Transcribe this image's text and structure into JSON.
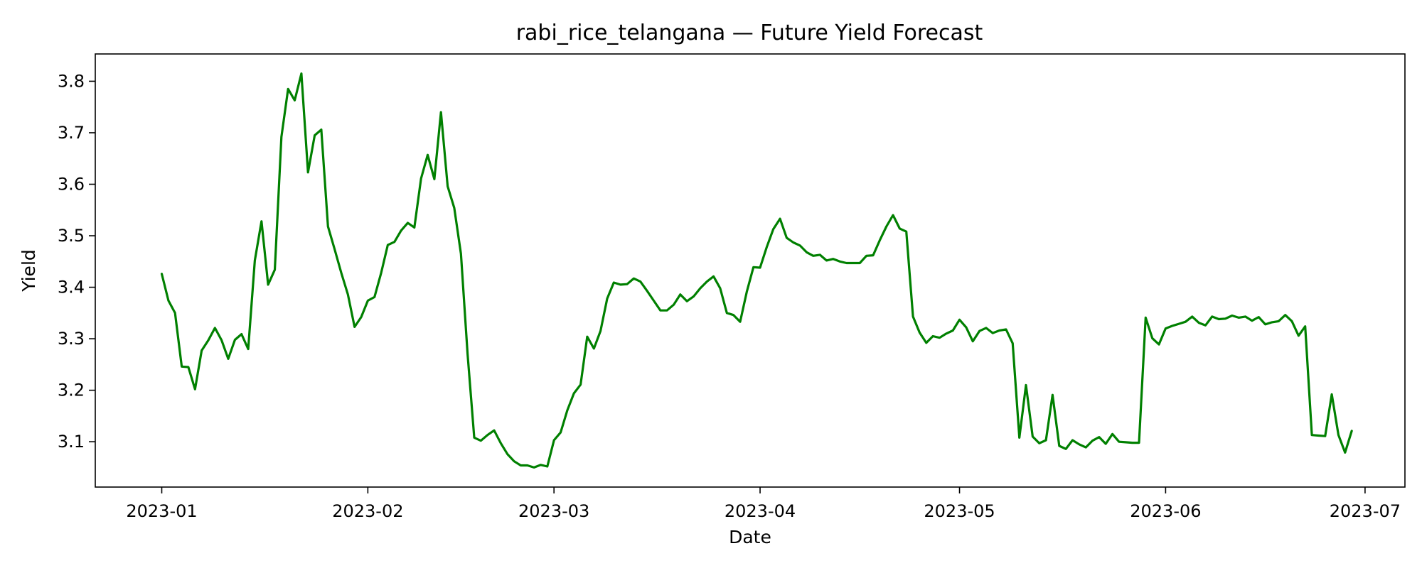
{
  "chart_data": {
    "type": "line",
    "title": "rabi_rice_telangana — Future Yield Forecast",
    "xlabel": "Date",
    "ylabel": "Yield",
    "grid": false,
    "color": "#008000",
    "xlim": [
      "2022-12-22",
      "2023-07-07"
    ],
    "ylim": [
      3.012,
      3.853
    ],
    "x_ticks": [
      "2023-01-01",
      "2023-02-01",
      "2023-03-01",
      "2023-04-01",
      "2023-05-01",
      "2023-06-01",
      "2023-07-01"
    ],
    "x_tick_labels": [
      "2023-01",
      "2023-02",
      "2023-03",
      "2023-04",
      "2023-05",
      "2023-06",
      "2023-07"
    ],
    "y_ticks": [
      3.1,
      3.2,
      3.3,
      3.4,
      3.5,
      3.6,
      3.7,
      3.8
    ],
    "y_tick_labels": [
      "3.1",
      "3.2",
      "3.3",
      "3.4",
      "3.5",
      "3.6",
      "3.7",
      "3.8"
    ],
    "series": [
      {
        "x": [
          "2023-01-01",
          "2023-01-02",
          "2023-01-03",
          "2023-01-04",
          "2023-01-05",
          "2023-01-06",
          "2023-01-07",
          "2023-01-08",
          "2023-01-09",
          "2023-01-10",
          "2023-01-11",
          "2023-01-12",
          "2023-01-13",
          "2023-01-14",
          "2023-01-15",
          "2023-01-16",
          "2023-01-17",
          "2023-01-18",
          "2023-01-19",
          "2023-01-20",
          "2023-01-21",
          "2023-01-22",
          "2023-01-23",
          "2023-01-24",
          "2023-01-25",
          "2023-01-26",
          "2023-01-27",
          "2023-01-28",
          "2023-01-29",
          "2023-01-30",
          "2023-01-31",
          "2023-02-01",
          "2023-02-02",
          "2023-02-03",
          "2023-02-04",
          "2023-02-05",
          "2023-02-06",
          "2023-02-07",
          "2023-02-08",
          "2023-02-09",
          "2023-02-10",
          "2023-02-11",
          "2023-02-12",
          "2023-02-13",
          "2023-02-14",
          "2023-02-15",
          "2023-02-16",
          "2023-02-17",
          "2023-02-18",
          "2023-02-19",
          "2023-02-20",
          "2023-02-21",
          "2023-02-22",
          "2023-02-23",
          "2023-02-24",
          "2023-02-25",
          "2023-02-26",
          "2023-02-27",
          "2023-02-28",
          "2023-03-01",
          "2023-03-02",
          "2023-03-03",
          "2023-03-04",
          "2023-03-05",
          "2023-03-06",
          "2023-03-07",
          "2023-03-08",
          "2023-03-09",
          "2023-03-10",
          "2023-03-11",
          "2023-03-12",
          "2023-03-13",
          "2023-03-14",
          "2023-03-15",
          "2023-03-16",
          "2023-03-17",
          "2023-03-18",
          "2023-03-19",
          "2023-03-20",
          "2023-03-21",
          "2023-03-22",
          "2023-03-23",
          "2023-03-24",
          "2023-03-25",
          "2023-03-26",
          "2023-03-27",
          "2023-03-28",
          "2023-03-29",
          "2023-03-30",
          "2023-03-31",
          "2023-04-01",
          "2023-04-02",
          "2023-04-03",
          "2023-04-04",
          "2023-04-05",
          "2023-04-06",
          "2023-04-07",
          "2023-04-08",
          "2023-04-09",
          "2023-04-10",
          "2023-04-11",
          "2023-04-12",
          "2023-04-13",
          "2023-04-14",
          "2023-04-15",
          "2023-04-16",
          "2023-04-17",
          "2023-04-18",
          "2023-04-19",
          "2023-04-20",
          "2023-04-21",
          "2023-04-22",
          "2023-04-23",
          "2023-04-24",
          "2023-04-25",
          "2023-04-26",
          "2023-04-27",
          "2023-04-28",
          "2023-04-29",
          "2023-04-30",
          "2023-05-01",
          "2023-05-02",
          "2023-05-03",
          "2023-05-04",
          "2023-05-05",
          "2023-05-06",
          "2023-05-07",
          "2023-05-08",
          "2023-05-09",
          "2023-05-10",
          "2023-05-11",
          "2023-05-12",
          "2023-05-13",
          "2023-05-14",
          "2023-05-15",
          "2023-05-16",
          "2023-05-17",
          "2023-05-18",
          "2023-05-19",
          "2023-05-20",
          "2023-05-21",
          "2023-05-22",
          "2023-05-23",
          "2023-05-24",
          "2023-05-25",
          "2023-05-26",
          "2023-05-27",
          "2023-05-28",
          "2023-05-29",
          "2023-05-30",
          "2023-05-31",
          "2023-06-01",
          "2023-06-02",
          "2023-06-03",
          "2023-06-04",
          "2023-06-05",
          "2023-06-06",
          "2023-06-07",
          "2023-06-08",
          "2023-06-09",
          "2023-06-10",
          "2023-06-11",
          "2023-06-12",
          "2023-06-13",
          "2023-06-14",
          "2023-06-15",
          "2023-06-16",
          "2023-06-17",
          "2023-06-18",
          "2023-06-19",
          "2023-06-20",
          "2023-06-21",
          "2023-06-22",
          "2023-06-23",
          "2023-06-24",
          "2023-06-25",
          "2023-06-26",
          "2023-06-27",
          "2023-06-28",
          "2023-06-29"
        ],
        "y": [
          3.426,
          3.374,
          3.35,
          3.246,
          3.245,
          3.202,
          3.277,
          3.297,
          3.321,
          3.297,
          3.261,
          3.298,
          3.309,
          3.28,
          3.452,
          3.528,
          3.405,
          3.434,
          3.692,
          3.785,
          3.763,
          3.815,
          3.623,
          3.695,
          3.706,
          3.518,
          3.474,
          3.428,
          3.386,
          3.323,
          3.342,
          3.374,
          3.381,
          3.428,
          3.482,
          3.488,
          3.51,
          3.525,
          3.516,
          3.611,
          3.657,
          3.61,
          3.74,
          3.596,
          3.554,
          3.465,
          3.271,
          3.108,
          3.102,
          3.113,
          3.122,
          3.097,
          3.076,
          3.062,
          3.054,
          3.054,
          3.05,
          3.055,
          3.052,
          3.103,
          3.118,
          3.161,
          3.194,
          3.211,
          3.304,
          3.281,
          3.315,
          3.378,
          3.409,
          3.405,
          3.406,
          3.417,
          3.411,
          3.393,
          3.374,
          3.355,
          3.355,
          3.366,
          3.386,
          3.373,
          3.382,
          3.398,
          3.411,
          3.421,
          3.398,
          3.35,
          3.346,
          3.333,
          3.391,
          3.439,
          3.438,
          3.478,
          3.513,
          3.533,
          3.496,
          3.487,
          3.481,
          3.468,
          3.461,
          3.463,
          3.452,
          3.455,
          3.45,
          3.447,
          3.447,
          3.447,
          3.461,
          3.462,
          3.491,
          3.518,
          3.54,
          3.514,
          3.508,
          3.343,
          3.312,
          3.292,
          3.305,
          3.302,
          3.31,
          3.316,
          3.337,
          3.322,
          3.295,
          3.315,
          3.321,
          3.311,
          3.316,
          3.318,
          3.291,
          3.108,
          3.21,
          3.11,
          3.097,
          3.103,
          3.191,
          3.092,
          3.086,
          3.103,
          3.095,
          3.089,
          3.102,
          3.109,
          3.096,
          3.115,
          3.1,
          3.099,
          3.098,
          3.098,
          3.341,
          3.301,
          3.289,
          3.32,
          3.325,
          3.329,
          3.333,
          3.343,
          3.331,
          3.326,
          3.343,
          3.338,
          3.339,
          3.345,
          3.341,
          3.343,
          3.335,
          3.342,
          3.328,
          3.332,
          3.334,
          3.346,
          3.334,
          3.306,
          3.324,
          3.113,
          3.112,
          3.111,
          3.192,
          3.113,
          3.079,
          3.121
        ]
      }
    ]
  }
}
